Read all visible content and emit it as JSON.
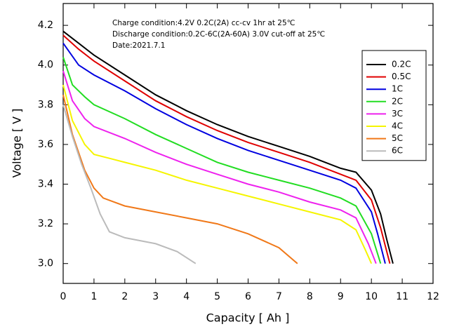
{
  "chart_data": {
    "type": "line",
    "annotations": [
      "Charge condition:4.2V 0.2C(2A) cc-cv 1hr at 25℃",
      "Discharge condition:0.2C-6C(2A-60A) 3.0V cut-off at 25℃",
      "Date:2021.7.1"
    ],
    "x_label": "Capacity [ Ah ]",
    "y_label": "Voltage [ V ]",
    "xlim": [
      0,
      12
    ],
    "ylim": [
      2.9,
      4.31
    ],
    "xticks": [
      0,
      1,
      2,
      3,
      4,
      5,
      6,
      7,
      8,
      9,
      10,
      11,
      12
    ],
    "yticks": [
      {
        "value": 3,
        "label": "3.0"
      },
      3.2,
      3.4,
      3.6,
      3.8,
      {
        "value": 4,
        "label": "4.0"
      },
      4.2
    ],
    "legend": "top-right",
    "series": [
      {
        "name": "0.2C",
        "color": "#000000",
        "x": [
          0,
          0.5,
          1,
          2,
          3,
          4,
          5,
          6,
          7,
          8,
          8.5,
          9,
          9.5,
          10,
          10.3,
          10.5,
          10.7
        ],
        "values": [
          4.17,
          4.11,
          4.05,
          3.95,
          3.85,
          3.77,
          3.7,
          3.64,
          3.59,
          3.54,
          3.51,
          3.48,
          3.46,
          3.37,
          3.25,
          3.12,
          3.0
        ]
      },
      {
        "name": "0.5C",
        "color": "#e00000",
        "x": [
          0,
          0.5,
          1,
          2,
          3,
          4,
          5,
          6,
          7,
          8,
          9,
          9.5,
          10,
          10.3,
          10.6
        ],
        "values": [
          4.15,
          4.08,
          4.02,
          3.92,
          3.82,
          3.74,
          3.67,
          3.61,
          3.56,
          3.51,
          3.45,
          3.42,
          3.32,
          3.18,
          3.0
        ]
      },
      {
        "name": "1C",
        "color": "#0000e0",
        "x": [
          0,
          0.5,
          1,
          2,
          3,
          4,
          5,
          6,
          7,
          8,
          9,
          9.5,
          10,
          10.2,
          10.45
        ],
        "values": [
          4.11,
          4.0,
          3.95,
          3.87,
          3.78,
          3.7,
          3.63,
          3.57,
          3.52,
          3.47,
          3.42,
          3.38,
          3.26,
          3.15,
          3.0
        ]
      },
      {
        "name": "2C",
        "color": "#22dd22",
        "x": [
          0,
          0.3,
          0.7,
          1,
          2,
          3,
          4,
          5,
          6,
          7,
          8,
          9,
          9.5,
          10,
          10.3
        ],
        "values": [
          4.04,
          3.9,
          3.84,
          3.8,
          3.73,
          3.65,
          3.58,
          3.51,
          3.46,
          3.42,
          3.38,
          3.33,
          3.29,
          3.15,
          3.0
        ]
      },
      {
        "name": "3C",
        "color": "#ee22ee",
        "x": [
          0,
          0.3,
          0.7,
          1,
          2,
          3,
          4,
          5,
          6,
          7,
          8,
          9,
          9.5,
          9.9,
          10.15
        ],
        "values": [
          3.97,
          3.82,
          3.73,
          3.69,
          3.63,
          3.56,
          3.5,
          3.45,
          3.4,
          3.36,
          3.31,
          3.27,
          3.23,
          3.1,
          3.0
        ]
      },
      {
        "name": "4C",
        "color": "#f5f500",
        "x": [
          0,
          0.3,
          0.7,
          1,
          1.5,
          2,
          3,
          4,
          5,
          6,
          7,
          8,
          9,
          9.5,
          9.8,
          10
        ],
        "values": [
          3.9,
          3.72,
          3.6,
          3.55,
          3.53,
          3.51,
          3.47,
          3.42,
          3.38,
          3.34,
          3.3,
          3.26,
          3.22,
          3.17,
          3.07,
          3.0
        ]
      },
      {
        "name": "5C",
        "color": "#f07818",
        "x": [
          0,
          0.3,
          0.7,
          1,
          1.3,
          2,
          3,
          4,
          5,
          6,
          7,
          7.6
        ],
        "values": [
          3.85,
          3.65,
          3.47,
          3.38,
          3.33,
          3.29,
          3.26,
          3.23,
          3.2,
          3.15,
          3.08,
          3.0
        ]
      },
      {
        "name": "6C",
        "color": "#bbbbbb",
        "x": [
          0,
          0.3,
          0.6,
          0.9,
          1.2,
          1.5,
          2,
          3,
          3.7,
          4.3
        ],
        "values": [
          3.8,
          3.64,
          3.5,
          3.38,
          3.25,
          3.16,
          3.13,
          3.1,
          3.06,
          3.0
        ]
      }
    ]
  }
}
